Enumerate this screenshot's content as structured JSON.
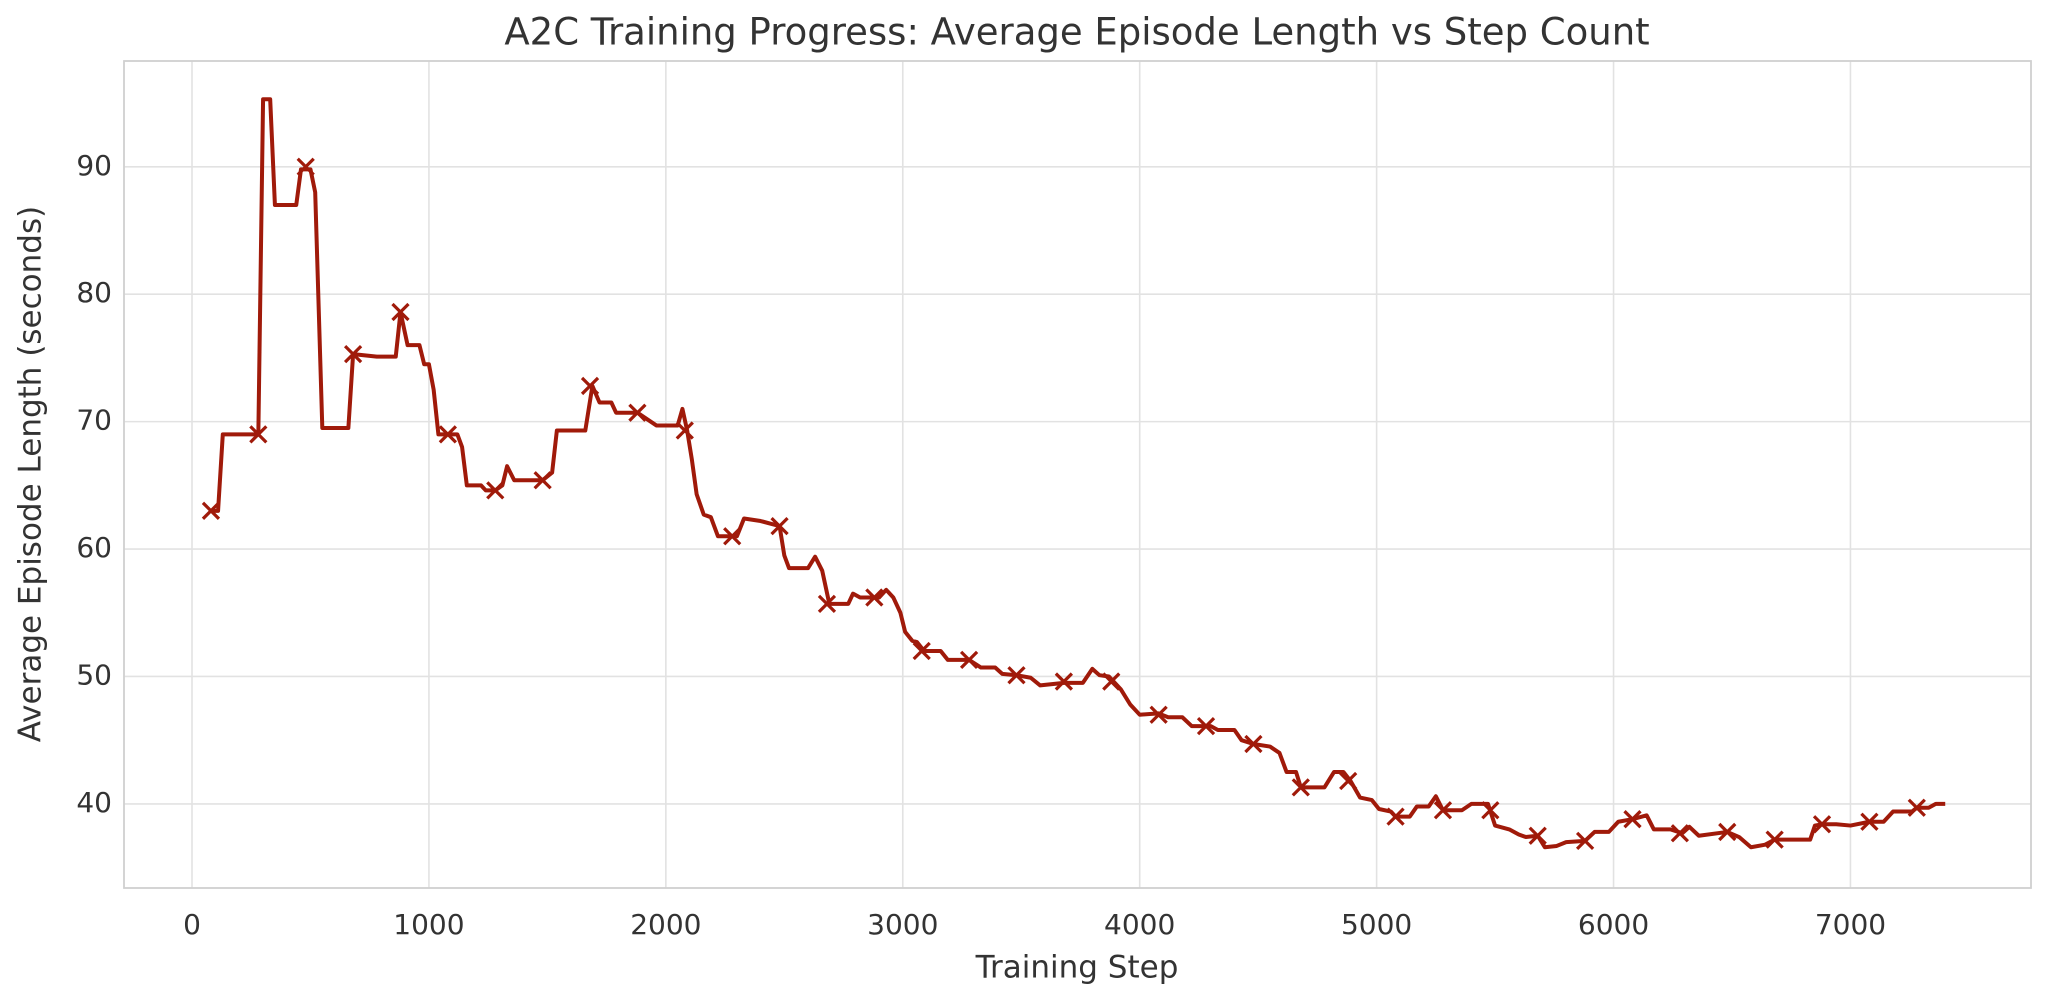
{
  "chart_data": {
    "type": "line",
    "title": "A2C Training Progress: Average Episode Length vs Step Count",
    "x_label": "Training Step",
    "y_label": "Average Episode Length (seconds)",
    "xlim": [
      -287,
      7762
    ],
    "ylim": [
      33.4,
      98.3
    ],
    "xticks": [
      0,
      1000,
      2000,
      3000,
      4000,
      5000,
      6000,
      7000
    ],
    "yticks": [
      40,
      50,
      60,
      70,
      80,
      90
    ],
    "grid": true,
    "series": [
      {
        "color": "#a01a0a",
        "style": "line",
        "x": [
          80,
          110,
          130,
          280,
          300,
          330,
          350,
          440,
          460,
          500,
          520,
          550,
          660,
          680,
          780,
          860,
          880,
          910,
          960,
          980,
          1000,
          1020,
          1040,
          1080,
          1120,
          1140,
          1160,
          1220,
          1240,
          1280,
          1310,
          1330,
          1360,
          1460,
          1480,
          1520,
          1540,
          1660,
          1690,
          1720,
          1770,
          1790,
          1880,
          1920,
          1960,
          2050,
          2070,
          2090,
          2110,
          2130,
          2160,
          2190,
          2220,
          2280,
          2300,
          2330,
          2400,
          2440,
          2480,
          2500,
          2520,
          2600,
          2630,
          2660,
          2690,
          2770,
          2790,
          2820,
          2900,
          2930,
          2960,
          2990,
          3010,
          3040,
          3060,
          3090,
          3160,
          3190,
          3280,
          3330,
          3390,
          3420,
          3480,
          3540,
          3580,
          3680,
          3760,
          3800,
          3830,
          3870,
          3920,
          3960,
          4000,
          4080,
          4120,
          4180,
          4220,
          4300,
          4330,
          4400,
          4430,
          4480,
          4550,
          4590,
          4620,
          4660,
          4680,
          4780,
          4820,
          4860,
          4890,
          4930,
          4980,
          5010,
          5060,
          5080,
          5140,
          5170,
          5220,
          5250,
          5280,
          5360,
          5400,
          5470,
          5500,
          5560,
          5600,
          5630,
          5680,
          5710,
          5760,
          5800,
          5880,
          5920,
          5980,
          6020,
          6080,
          6140,
          6170,
          6240,
          6290,
          6320,
          6360,
          6480,
          6530,
          6580,
          6640,
          6680,
          6760,
          6830,
          6850,
          6880,
          6940,
          7000,
          7080,
          7140,
          7180,
          7260,
          7280,
          7330,
          7360,
          7400
        ],
        "values": [
          63,
          63,
          69,
          69,
          95.3,
          95.3,
          87,
          87,
          89.8,
          89.8,
          88,
          69.5,
          69.5,
          75.3,
          75.1,
          75.1,
          78.6,
          76,
          76,
          74.5,
          74.5,
          72.5,
          69,
          69,
          69,
          68,
          65,
          65,
          64.6,
          64.6,
          65,
          66.5,
          65.4,
          65.4,
          65.4,
          66,
          69.3,
          69.3,
          72.8,
          71.5,
          71.5,
          70.7,
          70.7,
          70.2,
          69.7,
          69.7,
          71,
          69.3,
          67,
          64.3,
          62.7,
          62.5,
          61,
          61,
          61,
          62.4,
          62.2,
          62,
          61.8,
          59.5,
          58.5,
          58.5,
          59.4,
          58.3,
          55.7,
          55.7,
          56.5,
          56.2,
          56.2,
          56.8,
          56.2,
          55,
          53.5,
          52.8,
          52.7,
          52,
          52,
          51.3,
          51.3,
          50.7,
          50.7,
          50.2,
          50.1,
          49.9,
          49.3,
          49.5,
          49.5,
          50.6,
          50.1,
          50,
          49,
          47.8,
          47,
          47.1,
          46.8,
          46.8,
          46.1,
          46.1,
          45.8,
          45.8,
          45,
          44.7,
          44.5,
          44,
          42.5,
          42.5,
          41.3,
          41.3,
          42.5,
          42.5,
          41.8,
          40.5,
          40.3,
          39.6,
          39.4,
          39,
          39,
          39.8,
          39.8,
          40.6,
          39.5,
          39.5,
          40,
          40,
          38.3,
          38,
          37.6,
          37.4,
          37.5,
          36.6,
          36.7,
          37,
          37.1,
          37.8,
          37.8,
          38.6,
          38.8,
          39.1,
          38,
          38,
          37.7,
          38.2,
          37.5,
          37.8,
          37.4,
          36.6,
          36.8,
          37.2,
          37.2,
          37.2,
          38.3,
          38.4,
          38.4,
          38.3,
          38.6,
          38.6,
          39.4,
          39.4,
          39.7,
          39.7,
          40,
          40
        ]
      },
      {
        "color": "#a01a0a",
        "style": "markers",
        "marker": "x",
        "x": [
          80,
          280,
          480,
          680,
          880,
          1080,
          1280,
          1480,
          1680,
          1880,
          2080,
          2280,
          2480,
          2680,
          2880,
          3080,
          3280,
          3480,
          3680,
          3880,
          4080,
          4280,
          4480,
          4680,
          4880,
          5080,
          5280,
          5480,
          5680,
          5880,
          6080,
          6280,
          6480,
          6680,
          6880,
          7080,
          7280
        ],
        "values": [
          63,
          69,
          90,
          75.3,
          78.6,
          69,
          64.6,
          65.4,
          72.8,
          70.7,
          69.3,
          61,
          61.8,
          55.7,
          56.2,
          52,
          51.3,
          50.1,
          49.6,
          49.6,
          47,
          46.1,
          44.7,
          41.3,
          41.8,
          39,
          39.5,
          39.5,
          37.5,
          37.1,
          38.8,
          37.7,
          37.8,
          37.2,
          38.4,
          38.6,
          39.7
        ]
      }
    ]
  }
}
